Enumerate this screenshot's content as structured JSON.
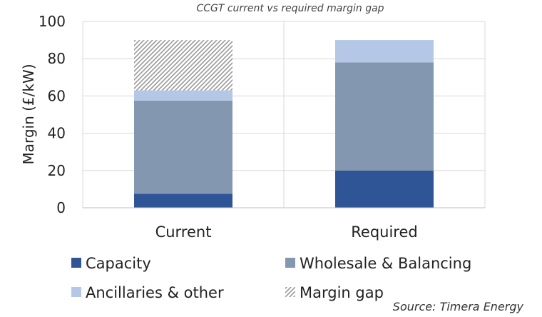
{
  "chart_data": {
    "type": "bar",
    "stacked": true,
    "title": "CCGT current vs required margin gap",
    "ylabel": "Margin (£/kW)",
    "xlabel": "",
    "ylim": [
      0,
      100
    ],
    "yticks": [
      0,
      20,
      40,
      60,
      80,
      100
    ],
    "grid": true,
    "categories": [
      "Current",
      "Required"
    ],
    "series": [
      {
        "name": "Capacity",
        "color": "#2f5597",
        "values": [
          7.5,
          20
        ]
      },
      {
        "name": "Wholesale & Balancing",
        "color": "#8497b0",
        "values": [
          50,
          58
        ]
      },
      {
        "name": "Ancillaries & other",
        "color": "#b4c7e7",
        "values": [
          5.5,
          12
        ]
      },
      {
        "name": "Margin gap",
        "color": "#a6a6a6",
        "pattern": "hatch",
        "values": [
          27,
          0
        ]
      }
    ],
    "legend": {
      "position": "bottom"
    },
    "source": "Source: Timera Energy"
  }
}
